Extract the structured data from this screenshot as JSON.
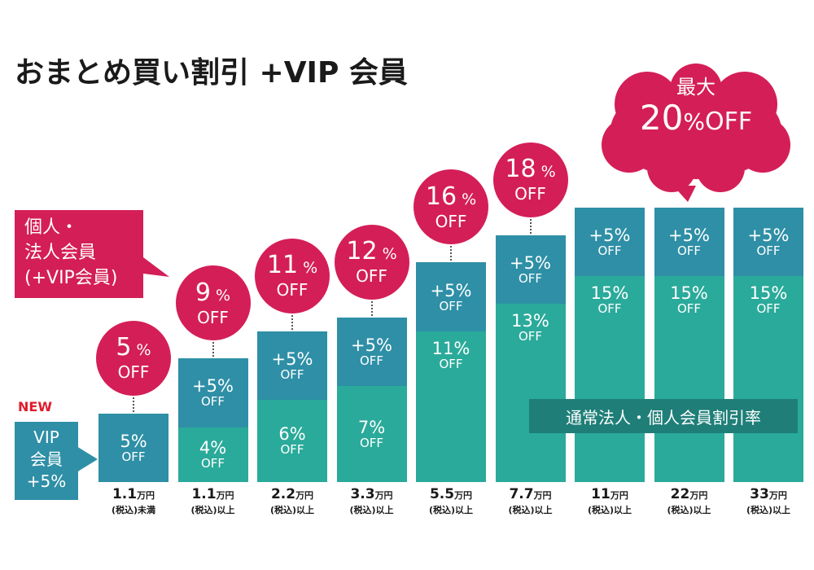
{
  "title": "おまとめ買い割引 +VIP 会員",
  "member_callout": {
    "line1": "個人・",
    "line2": "法人会員",
    "line3": "(+VIP会員)"
  },
  "max_callout": {
    "line1": "最大",
    "line2_num": "20",
    "line2_pct": "%",
    "line2_off": "OFF"
  },
  "vip_badge": {
    "new": "NEW",
    "line1": "VIP",
    "line2": "会員",
    "line3": "+5%"
  },
  "legend": "通常法人・個人会員割引率",
  "colors": {
    "bonus": "#2e8fa6",
    "base": "#2aaa9a",
    "accent": "#d41e57",
    "legend": "#1f7f78"
  },
  "chart_data": {
    "type": "bar",
    "stacked": true,
    "categories": [
      {
        "amount": "1.1",
        "unit": "万円",
        "condition": "(税込)未満"
      },
      {
        "amount": "1.1",
        "unit": "万円",
        "condition": "(税込)以上"
      },
      {
        "amount": "2.2",
        "unit": "万円",
        "condition": "(税込)以上"
      },
      {
        "amount": "3.3",
        "unit": "万円",
        "condition": "(税込)以上"
      },
      {
        "amount": "5.5",
        "unit": "万円",
        "condition": "(税込)以上"
      },
      {
        "amount": "7.7",
        "unit": "万円",
        "condition": "(税込)以上"
      },
      {
        "amount": "11",
        "unit": "万円",
        "condition": "(税込)以上"
      },
      {
        "amount": "22",
        "unit": "万円",
        "condition": "(税込)以上"
      },
      {
        "amount": "33",
        "unit": "万円",
        "condition": "(税込)以上"
      }
    ],
    "series": [
      {
        "name": "通常法人・個人会員割引率",
        "values": [
          0,
          4,
          6,
          7,
          11,
          13,
          15,
          15,
          15
        ]
      },
      {
        "name": "VIP会員 +5%",
        "values": [
          5,
          5,
          5,
          5,
          5,
          5,
          5,
          5,
          5
        ]
      }
    ],
    "totals": [
      5,
      9,
      11,
      12,
      16,
      18,
      20,
      20,
      20
    ],
    "total_circles": [
      5,
      9,
      11,
      12,
      16,
      18
    ],
    "pct_symbol": "%",
    "off_label": "OFF",
    "plus_prefix": "+",
    "ylim": [
      0,
      20
    ]
  }
}
